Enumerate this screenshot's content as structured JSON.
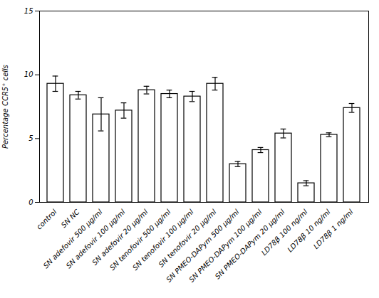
{
  "chart_data": {
    "type": "bar",
    "categories": [
      "control",
      "SN NC",
      "SN adefovir 500 µg/ml",
      "SN adefovir 100 µg/ml",
      "SN adefovir 20 µg/ml",
      "SN tenofovir 500 µg/ml",
      "SN tenofovir 100 µg/ml",
      "SN tenofovir 20 µg/ml",
      "SN PMEO-DAPym 500 µg/ml",
      "SN PMEO-DAPym 100 µg/ml",
      "SN PMEO-DAPym 20 µg/ml",
      "LD78β 100 ng/ml",
      "LD78β 10 ng/ml",
      "LD78β 1 ng/ml"
    ],
    "values": [
      9.3,
      8.4,
      6.9,
      7.2,
      8.8,
      8.5,
      8.3,
      9.3,
      3.0,
      4.1,
      5.4,
      1.5,
      5.3,
      7.4
    ],
    "errors": [
      0.6,
      0.3,
      1.3,
      0.6,
      0.3,
      0.3,
      0.4,
      0.5,
      0.2,
      0.2,
      0.35,
      0.2,
      0.15,
      0.35
    ],
    "ylabel": "Percentage CCR5⁺ cells",
    "ylim": [
      0,
      15
    ],
    "yticks": [
      0,
      5,
      10,
      15
    ],
    "color": "white",
    "grid": false
  }
}
